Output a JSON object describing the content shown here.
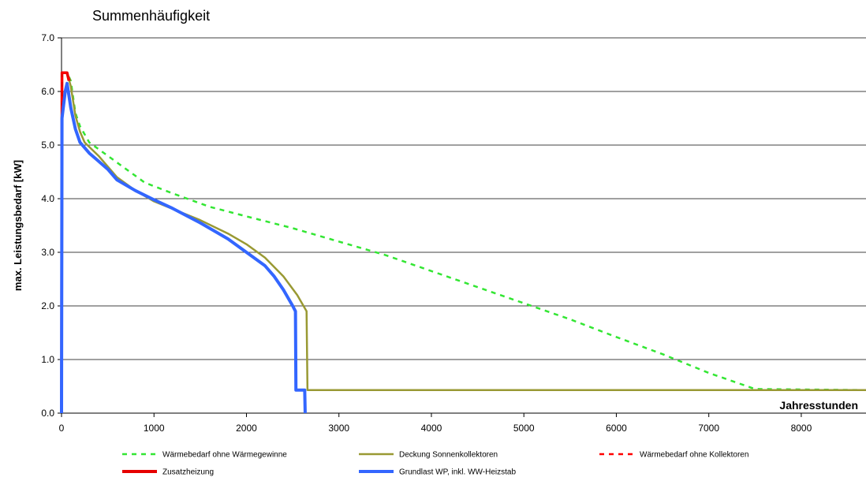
{
  "chart_data": {
    "type": "line",
    "title": "Summenhäufigkeit",
    "xlabel": "Jahresstunden",
    "ylabel": "max. Leistungsbedarf [kW]",
    "xlim": [
      0,
      8700
    ],
    "ylim": [
      0,
      7
    ],
    "xticks": [
      "0",
      "1000",
      "2000",
      "3000",
      "4000",
      "5000",
      "6000",
      "7000",
      "8000"
    ],
    "yticks": [
      "0.0",
      "1.0",
      "2.0",
      "3.0",
      "4.0",
      "5.0",
      "6.0",
      "7.0"
    ],
    "grid": "horizontal",
    "legend_position": "bottom",
    "series": [
      {
        "name": "Wärmebedarf ohne Wärmegewinne",
        "color": "#33e633",
        "dash": "dashed",
        "points": [
          [
            0,
            0
          ],
          [
            5,
            6.35
          ],
          [
            60,
            6.35
          ],
          [
            100,
            6.2
          ],
          [
            150,
            5.6
          ],
          [
            200,
            5.35
          ],
          [
            300,
            5.05
          ],
          [
            500,
            4.8
          ],
          [
            700,
            4.55
          ],
          [
            900,
            4.3
          ],
          [
            1200,
            4.1
          ],
          [
            1600,
            3.85
          ],
          [
            2000,
            3.67
          ],
          [
            2500,
            3.45
          ],
          [
            3000,
            3.2
          ],
          [
            3500,
            2.95
          ],
          [
            4000,
            2.65
          ],
          [
            4500,
            2.35
          ],
          [
            5000,
            2.05
          ],
          [
            5500,
            1.75
          ],
          [
            6000,
            1.42
          ],
          [
            6500,
            1.1
          ],
          [
            7000,
            0.75
          ],
          [
            7500,
            0.45
          ],
          [
            8700,
            0.43
          ]
        ]
      },
      {
        "name": "Deckung Sonnenkollektoren",
        "color": "#999933",
        "dash": "solid",
        "points": [
          [
            0,
            0
          ],
          [
            5,
            6.35
          ],
          [
            60,
            6.35
          ],
          [
            100,
            6.1
          ],
          [
            150,
            5.55
          ],
          [
            200,
            5.25
          ],
          [
            250,
            5.05
          ],
          [
            400,
            4.8
          ],
          [
            600,
            4.4
          ],
          [
            800,
            4.15
          ],
          [
            1000,
            3.95
          ],
          [
            1500,
            3.6
          ],
          [
            1800,
            3.35
          ],
          [
            2000,
            3.15
          ],
          [
            2200,
            2.9
          ],
          [
            2400,
            2.55
          ],
          [
            2550,
            2.2
          ],
          [
            2650,
            1.9
          ],
          [
            2660,
            0.43
          ],
          [
            8700,
            0.43
          ]
        ]
      },
      {
        "name": "Wärmebedarf ohne Kollektoren",
        "color": "#ff0000",
        "dash": "dashed",
        "points": [
          [
            0,
            0
          ],
          [
            5,
            6.35
          ],
          [
            60,
            6.35
          ],
          [
            90,
            6.2
          ]
        ]
      },
      {
        "name": "Zusatzheizung",
        "color": "#e60000",
        "dash": "solid",
        "points": [
          [
            0,
            0
          ],
          [
            5,
            6.35
          ],
          [
            60,
            6.35
          ],
          [
            80,
            6.2
          ]
        ]
      },
      {
        "name": "Grundlast WP, inkl. WW-Heizstab",
        "color": "#3366ff",
        "dash": "solid",
        "points": [
          [
            0,
            0
          ],
          [
            5,
            5.5
          ],
          [
            40,
            6.0
          ],
          [
            60,
            6.15
          ],
          [
            100,
            5.7
          ],
          [
            150,
            5.3
          ],
          [
            200,
            5.05
          ],
          [
            300,
            4.85
          ],
          [
            400,
            4.7
          ],
          [
            500,
            4.55
          ],
          [
            600,
            4.35
          ],
          [
            800,
            4.15
          ],
          [
            1000,
            3.98
          ],
          [
            1200,
            3.82
          ],
          [
            1500,
            3.55
          ],
          [
            1800,
            3.25
          ],
          [
            2000,
            3.0
          ],
          [
            2200,
            2.75
          ],
          [
            2300,
            2.55
          ],
          [
            2400,
            2.3
          ],
          [
            2500,
            2.0
          ],
          [
            2530,
            1.9
          ],
          [
            2535,
            0.43
          ],
          [
            2630,
            0.43
          ],
          [
            2635,
            0.0
          ]
        ]
      }
    ]
  }
}
